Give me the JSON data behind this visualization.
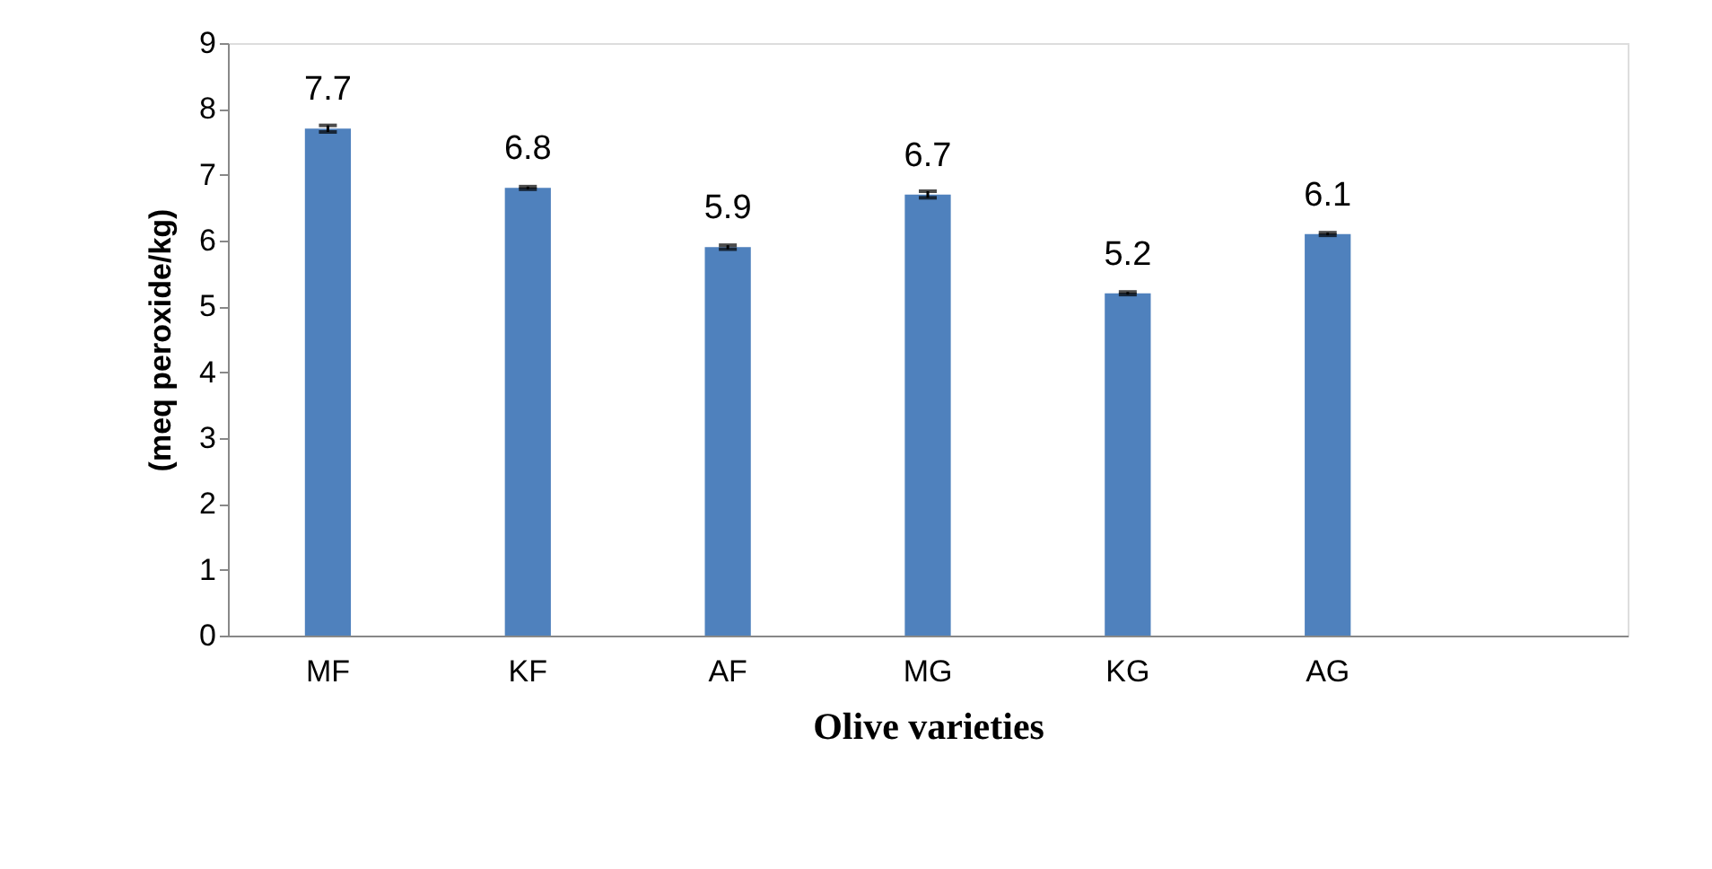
{
  "chart_data": {
    "type": "bar",
    "xlabel": "Olive varieties",
    "ylabel": "(meq peroxide/kg)",
    "categories": [
      "MF",
      "KF",
      "AF",
      "MG",
      "KG",
      "AG",
      null
    ],
    "values": [
      7.7,
      6.8,
      5.9,
      6.7,
      5.2,
      6.1,
      null
    ],
    "errors": [
      0.05,
      0.02,
      0.03,
      0.05,
      0.02,
      0.02,
      null
    ],
    "color": "#4f81bd",
    "ylim": [
      0,
      9
    ],
    "yticks": [
      0,
      1,
      2,
      3,
      4,
      5,
      6,
      7,
      8,
      9
    ],
    "grid": false,
    "data_labels": true
  }
}
